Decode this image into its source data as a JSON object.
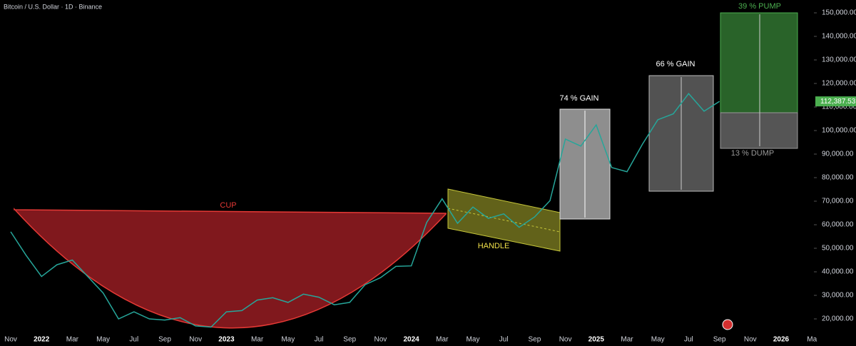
{
  "chart_data": {
    "type": "line",
    "title": "Bitcoin / U.S. Dollar · 1D · Binance",
    "categories": [
      "Nov",
      null,
      "2022",
      null,
      "Mar",
      null,
      "May",
      null,
      "Jul",
      null,
      "Sep",
      null,
      "Nov",
      null,
      "2023",
      null,
      "Mar",
      null,
      "May",
      null,
      "Jul",
      null,
      "Sep",
      null,
      "Nov",
      null,
      "2024",
      null,
      "Mar",
      null,
      "May",
      null,
      "Jul",
      null,
      "Sep",
      null,
      "Nov",
      null,
      "2025",
      null,
      "Mar",
      null,
      "May",
      null,
      "Jul",
      null,
      "Sep",
      null,
      "Nov",
      null,
      "2026",
      null,
      "Ma"
    ],
    "values": [
      57000,
      47000,
      38000,
      43000,
      45000,
      38000,
      31000,
      20000,
      23000,
      20000,
      19500,
      20500,
      17000,
      16500,
      23000,
      23500,
      28000,
      29000,
      27000,
      30500,
      29200,
      26000,
      27000,
      34500,
      37500,
      42300,
      42500,
      61000,
      71000,
      60600,
      67500,
      62700,
      64600,
      58900,
      63300,
      70200,
      96400,
      93400,
      102400,
      84300,
      82500,
      94200,
      104600,
      107100,
      115700,
      108200,
      112387.53,
      null,
      null,
      null,
      null,
      null,
      null
    ],
    "color": "#26a69a",
    "ylim": [
      14545,
      155455
    ],
    "yticks": [
      {
        "value": 20000,
        "label": "20,000.00"
      },
      {
        "value": 30000,
        "label": "30,000.00"
      },
      {
        "value": 40000,
        "label": "40,000.00"
      },
      {
        "value": 50000,
        "label": "50,000.00"
      },
      {
        "value": 60000,
        "label": "60,000.00"
      },
      {
        "value": 70000,
        "label": "70,000.00"
      },
      {
        "value": 80000,
        "label": "80,000.00"
      },
      {
        "value": 90000,
        "label": "90,000.00"
      },
      {
        "value": 100000,
        "label": "100,000.00"
      },
      {
        "value": 110000,
        "label": "110,000.00"
      },
      {
        "value": 120000,
        "label": "120,000.00"
      },
      {
        "value": 130000,
        "label": "130,000.00"
      },
      {
        "value": 140000,
        "label": "140,000.00"
      },
      {
        "value": 150000,
        "label": "150,000.00"
      }
    ],
    "price_tag": {
      "value": 112387.53,
      "label": "112,387.53"
    },
    "annotations": {
      "cup": "CUP",
      "handle": "HANDLE",
      "gain1": "74 % GAIN",
      "gain2": "66 % GAIN",
      "pump": "39 % PUMP",
      "dump": "13 % DUMP"
    }
  }
}
